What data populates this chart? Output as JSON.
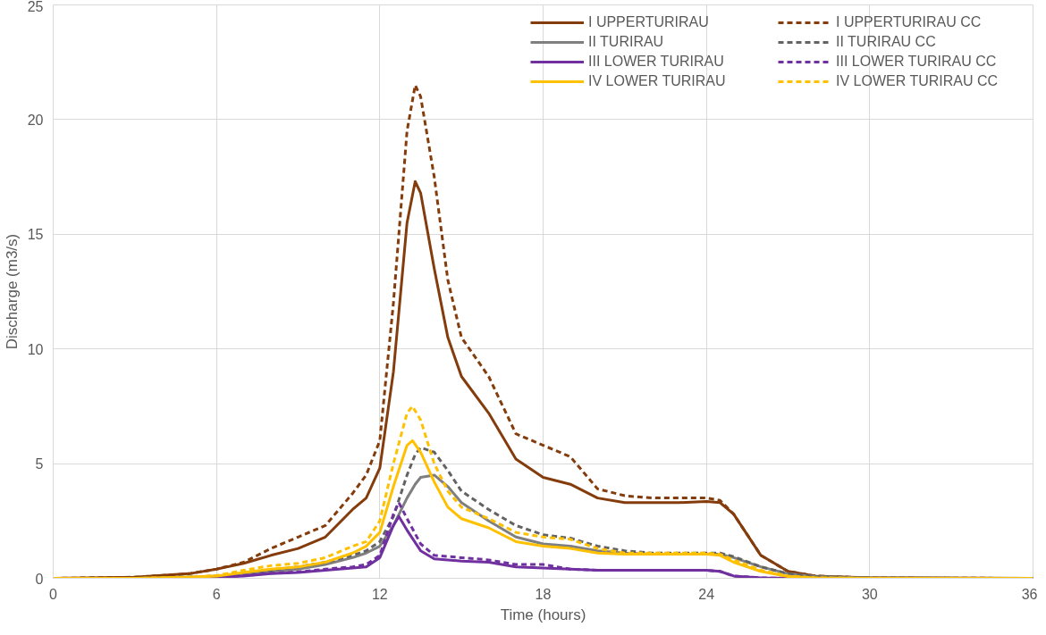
{
  "chart_data": {
    "type": "line",
    "xlabel": "Time (hours)",
    "ylabel": "Discharge (m3/s)",
    "xlim": [
      0,
      36
    ],
    "ylim": [
      0,
      25
    ],
    "xticks": [
      0,
      6,
      12,
      18,
      24,
      30,
      36
    ],
    "yticks": [
      0,
      5,
      10,
      15,
      20,
      25
    ],
    "grid": true,
    "legend": "top right",
    "marker": "none",
    "series": [
      {
        "name": "I UPPERTURIRAU",
        "color": "#843c0c",
        "line_style": "solid",
        "x": [
          0,
          3,
          5,
          6,
          7,
          8,
          9,
          10,
          11,
          11.5,
          12,
          12.5,
          13,
          13.3,
          13.5,
          14,
          14.5,
          15,
          16,
          17,
          18,
          19,
          20,
          21,
          22,
          23,
          24,
          24.5,
          25,
          26,
          27,
          28,
          30,
          36
        ],
        "values": [
          0,
          0.05,
          0.2,
          0.4,
          0.65,
          1.0,
          1.3,
          1.8,
          3.0,
          3.5,
          4.8,
          9,
          15.5,
          17.3,
          16.8,
          13.5,
          10.5,
          8.8,
          7.2,
          5.2,
          4.4,
          4.1,
          3.5,
          3.3,
          3.3,
          3.3,
          3.35,
          3.3,
          2.8,
          1.0,
          0.3,
          0.1,
          0.02,
          0
        ]
      },
      {
        "name": "I UPPERTURIRAU CC",
        "color": "#843c0c",
        "line_style": "dashed",
        "x": [
          0,
          3,
          5,
          6,
          7,
          8,
          9,
          10,
          11,
          11.5,
          12,
          12.5,
          13,
          13.3,
          13.5,
          14,
          14.5,
          15,
          16,
          17,
          18,
          19,
          20,
          21,
          22,
          23,
          24,
          24.5,
          25,
          26,
          27,
          28,
          30,
          36
        ],
        "values": [
          0,
          0.05,
          0.2,
          0.4,
          0.7,
          1.3,
          1.8,
          2.3,
          3.7,
          4.5,
          6,
          12,
          19.5,
          21.5,
          21,
          17.5,
          13,
          10.5,
          8.8,
          6.3,
          5.8,
          5.3,
          3.9,
          3.6,
          3.5,
          3.5,
          3.5,
          3.4,
          2.8,
          1.0,
          0.3,
          0.1,
          0.02,
          0
        ]
      },
      {
        "name": "II TURIRAU",
        "color": "#7f7f7f",
        "line_style": "solid",
        "x": [
          0,
          3,
          5,
          6,
          7,
          8,
          9,
          10,
          11,
          11.5,
          12,
          12.5,
          13,
          13.3,
          13.5,
          14,
          14.5,
          15,
          16,
          17,
          18,
          19,
          20,
          21,
          22,
          23,
          24,
          24.5,
          25,
          26,
          27,
          28,
          30,
          36
        ],
        "values": [
          0,
          0,
          0.05,
          0.1,
          0.2,
          0.3,
          0.4,
          0.6,
          0.9,
          1.1,
          1.4,
          2.3,
          3.5,
          4.1,
          4.4,
          4.5,
          4.0,
          3.3,
          2.5,
          1.8,
          1.5,
          1.4,
          1.2,
          1.1,
          1.05,
          1.05,
          1.05,
          1.05,
          0.9,
          0.5,
          0.2,
          0.08,
          0.01,
          0
        ]
      },
      {
        "name": "II TURIRAU CC",
        "color": "#636363",
        "line_style": "dashed",
        "x": [
          0,
          3,
          5,
          6,
          7,
          8,
          9,
          10,
          11,
          11.5,
          12,
          12.5,
          13,
          13.3,
          13.5,
          14,
          14.5,
          15,
          16,
          17,
          18,
          19,
          20,
          21,
          22,
          23,
          24,
          24.5,
          25,
          26,
          27,
          28,
          30,
          36
        ],
        "values": [
          0,
          0,
          0.05,
          0.1,
          0.25,
          0.35,
          0.5,
          0.7,
          1.0,
          1.2,
          1.6,
          2.7,
          4.5,
          5.4,
          5.7,
          5.5,
          4.7,
          3.8,
          3.0,
          2.3,
          1.9,
          1.75,
          1.4,
          1.2,
          1.1,
          1.1,
          1.1,
          1.1,
          0.95,
          0.5,
          0.2,
          0.08,
          0.01,
          0
        ]
      },
      {
        "name": "III LOWER TURIRAU",
        "color": "#7030a0",
        "line_style": "solid",
        "x": [
          5,
          6,
          7,
          8,
          9,
          10,
          11,
          11.5,
          12,
          12.5,
          12.7,
          13,
          13.5,
          14,
          15,
          16,
          17,
          18,
          19,
          20,
          21,
          22,
          23,
          24,
          24.5,
          25,
          26,
          27,
          36
        ],
        "values": [
          0.02,
          0.05,
          0.1,
          0.2,
          0.25,
          0.35,
          0.45,
          0.5,
          0.9,
          2.3,
          2.7,
          2.1,
          1.2,
          0.85,
          0.75,
          0.7,
          0.5,
          0.45,
          0.4,
          0.35,
          0.35,
          0.35,
          0.35,
          0.35,
          0.3,
          0.1,
          0.02,
          0,
          0
        ]
      },
      {
        "name": "III LOWER TURIRAU CC",
        "color": "#7030a0",
        "line_style": "dashed",
        "x": [
          5,
          6,
          7,
          8,
          9,
          10,
          11,
          11.5,
          12,
          12.5,
          12.7,
          13,
          13.5,
          14,
          15,
          16,
          17,
          18,
          19,
          20,
          21,
          22,
          23,
          24,
          24.5,
          25,
          26,
          27,
          36
        ],
        "values": [
          0.02,
          0.05,
          0.12,
          0.22,
          0.28,
          0.4,
          0.5,
          0.6,
          1.0,
          2.8,
          3.3,
          2.6,
          1.5,
          1.0,
          0.9,
          0.8,
          0.6,
          0.6,
          0.4,
          0.35,
          0.35,
          0.35,
          0.35,
          0.35,
          0.3,
          0.1,
          0.02,
          0,
          0
        ]
      },
      {
        "name": "IV LOWER TURIRAU",
        "color": "#ffc000",
        "line_style": "solid",
        "x": [
          0,
          3,
          5,
          6,
          7,
          8,
          9,
          10,
          11,
          11.5,
          12,
          12.5,
          13,
          13.2,
          13.5,
          14,
          14.5,
          15,
          16,
          17,
          18,
          19,
          20,
          21,
          22,
          23,
          24,
          24.5,
          25,
          26,
          27,
          28,
          30,
          36
        ],
        "values": [
          0,
          0,
          0.05,
          0.1,
          0.25,
          0.4,
          0.5,
          0.7,
          1.1,
          1.4,
          2.0,
          4.0,
          5.8,
          6.0,
          5.5,
          4.2,
          3.1,
          2.6,
          2.2,
          1.6,
          1.4,
          1.3,
          1.1,
          1.05,
          1.05,
          1.05,
          1.05,
          1.0,
          0.7,
          0.3,
          0.08,
          0.02,
          0,
          0
        ]
      },
      {
        "name": "IV LOWER TURIRAU CC",
        "color": "#ffc000",
        "line_style": "dashed",
        "x": [
          0,
          3,
          5,
          6,
          7,
          8,
          9,
          10,
          11,
          11.5,
          12,
          12.5,
          13,
          13.2,
          13.5,
          14,
          14.5,
          15,
          16,
          17,
          18,
          19,
          20,
          21,
          22,
          23,
          24,
          24.5,
          25,
          26,
          27,
          28,
          30,
          36
        ],
        "values": [
          0,
          0,
          0.05,
          0.12,
          0.35,
          0.55,
          0.65,
          0.9,
          1.4,
          1.6,
          2.5,
          5,
          7.2,
          7.5,
          6.9,
          5.0,
          3.8,
          3.1,
          2.6,
          2.0,
          1.8,
          1.7,
          1.3,
          1.1,
          1.1,
          1.1,
          1.1,
          1.05,
          0.8,
          0.35,
          0.1,
          0.02,
          0,
          0
        ]
      }
    ]
  }
}
